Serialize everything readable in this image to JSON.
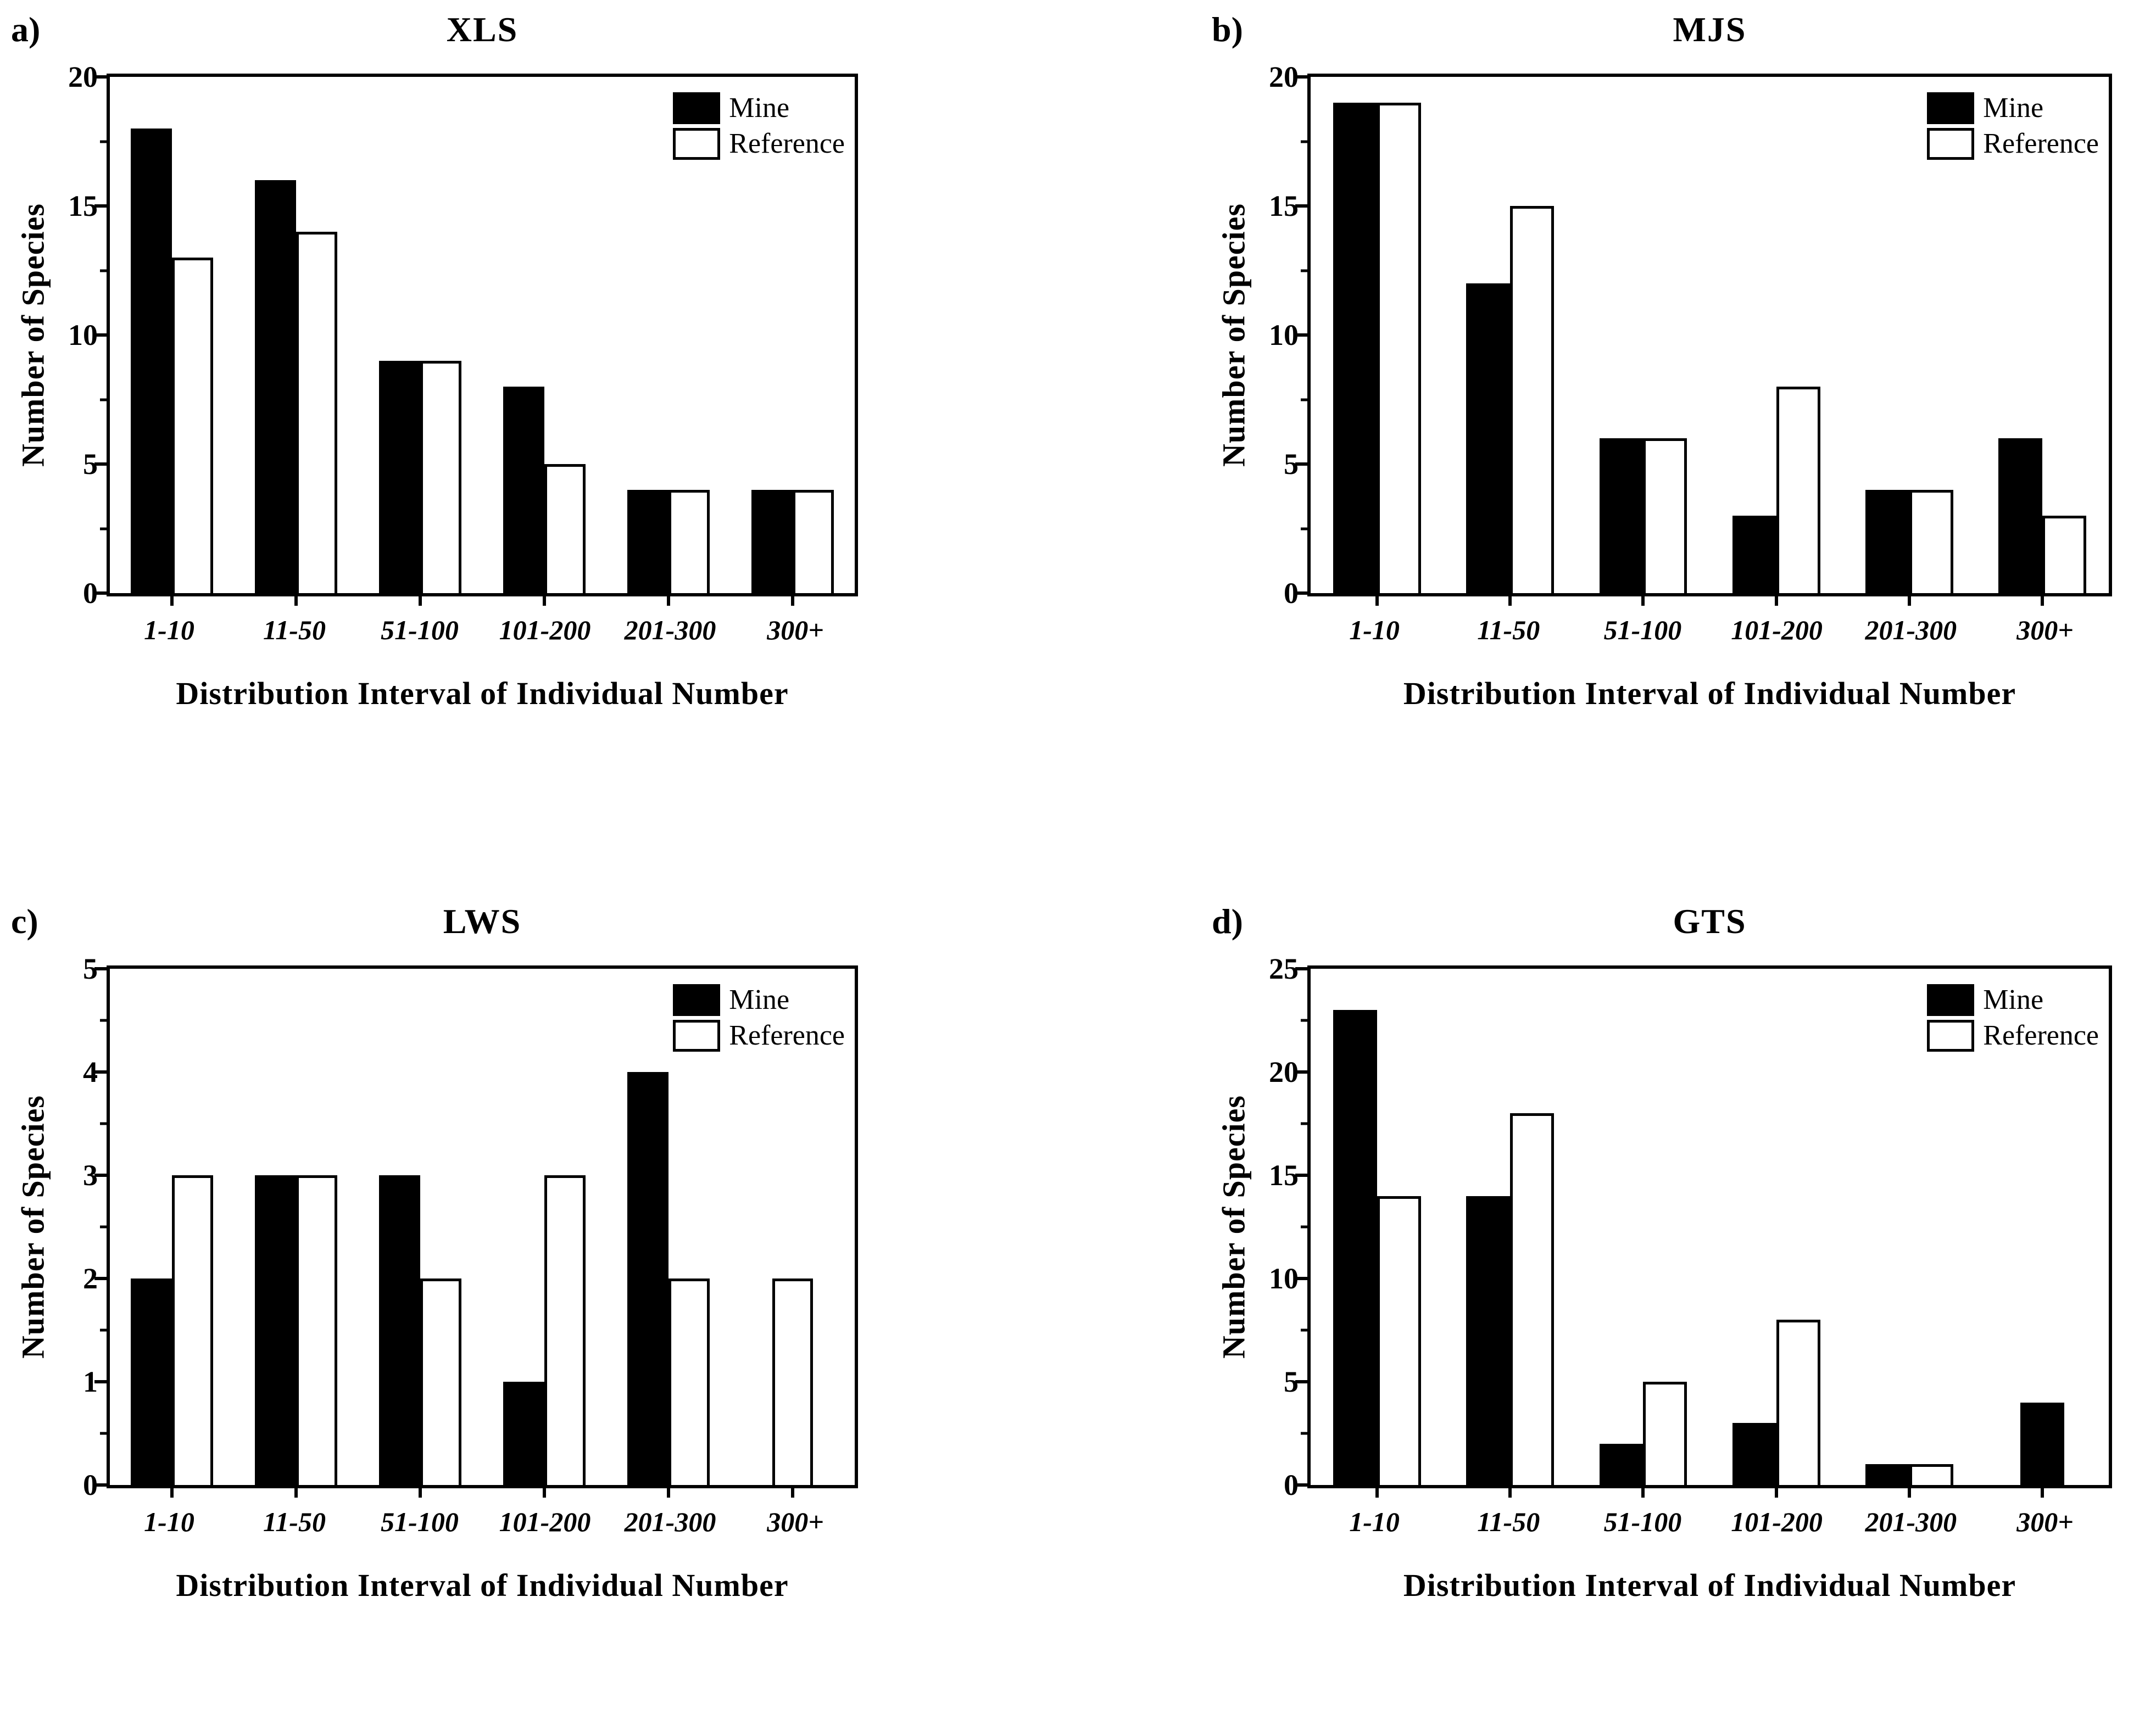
{
  "figure": {
    "background_color": "#ffffff",
    "axis_color": "#000000",
    "colors": {
      "mine": "#000000",
      "reference": "#ffffff",
      "border": "#000000"
    },
    "legend_labels": [
      "Mine",
      "Reference"
    ]
  },
  "chart_data": [
    {
      "type": "bar",
      "panel_letter": "a)",
      "title": "XLS",
      "xlabel": "Distribution Interval of Individual Number",
      "ylabel": "Number of Species",
      "categories": [
        "1-10",
        "11-50",
        "51-100",
        "101-200",
        "201-300",
        "300+"
      ],
      "series": [
        {
          "name": "Mine",
          "color": "#000000",
          "values": [
            18,
            16,
            9,
            8,
            4,
            4
          ]
        },
        {
          "name": "Reference",
          "color": "#ffffff",
          "values": [
            13,
            14,
            9,
            5,
            4,
            4
          ]
        }
      ],
      "ylim": [
        0,
        20
      ],
      "y_major_ticks": [
        0,
        5,
        10,
        15,
        20
      ],
      "y_minor_step": 2.5,
      "legend_position": "top-right",
      "grid": false
    },
    {
      "type": "bar",
      "panel_letter": "b)",
      "title": "MJS",
      "xlabel": "Distribution Interval of Individual Number",
      "ylabel": "Number of Species",
      "categories": [
        "1-10",
        "11-50",
        "51-100",
        "101-200",
        "201-300",
        "300+"
      ],
      "series": [
        {
          "name": "Mine",
          "color": "#000000",
          "values": [
            19,
            12,
            6,
            3,
            4,
            6
          ]
        },
        {
          "name": "Reference",
          "color": "#ffffff",
          "values": [
            19,
            15,
            6,
            8,
            4,
            3
          ]
        }
      ],
      "ylim": [
        0,
        20
      ],
      "y_major_ticks": [
        0,
        5,
        10,
        15,
        20
      ],
      "y_minor_step": 2.5,
      "legend_position": "top-right",
      "grid": false
    },
    {
      "type": "bar",
      "panel_letter": "c)",
      "title": "LWS",
      "xlabel": "Distribution Interval of Individual Number",
      "ylabel": "Number of Species",
      "categories": [
        "1-10",
        "11-50",
        "51-100",
        "101-200",
        "201-300",
        "300+"
      ],
      "series": [
        {
          "name": "Mine",
          "color": "#000000",
          "values": [
            2,
            3,
            3,
            1,
            4,
            0
          ]
        },
        {
          "name": "Reference",
          "color": "#ffffff",
          "values": [
            3,
            3,
            2,
            3,
            2,
            2
          ]
        }
      ],
      "ylim": [
        0,
        5
      ],
      "y_major_ticks": [
        0,
        1,
        2,
        3,
        4,
        5
      ],
      "y_minor_step": 0.5,
      "legend_position": "top-right",
      "grid": false
    },
    {
      "type": "bar",
      "panel_letter": "d)",
      "title": "GTS",
      "xlabel": "Distribution Interval of Individual Number",
      "ylabel": "Number of Species",
      "categories": [
        "1-10",
        "11-50",
        "51-100",
        "101-200",
        "201-300",
        "300+"
      ],
      "series": [
        {
          "name": "Mine",
          "color": "#000000",
          "values": [
            23,
            14,
            2,
            3,
            1,
            4
          ]
        },
        {
          "name": "Reference",
          "color": "#ffffff",
          "values": [
            14,
            18,
            5,
            8,
            1,
            0
          ]
        }
      ],
      "ylim": [
        0,
        25
      ],
      "y_major_ticks": [
        0,
        5,
        10,
        15,
        20,
        25
      ],
      "y_minor_step": 2.5,
      "legend_position": "top-right",
      "grid": false
    }
  ]
}
